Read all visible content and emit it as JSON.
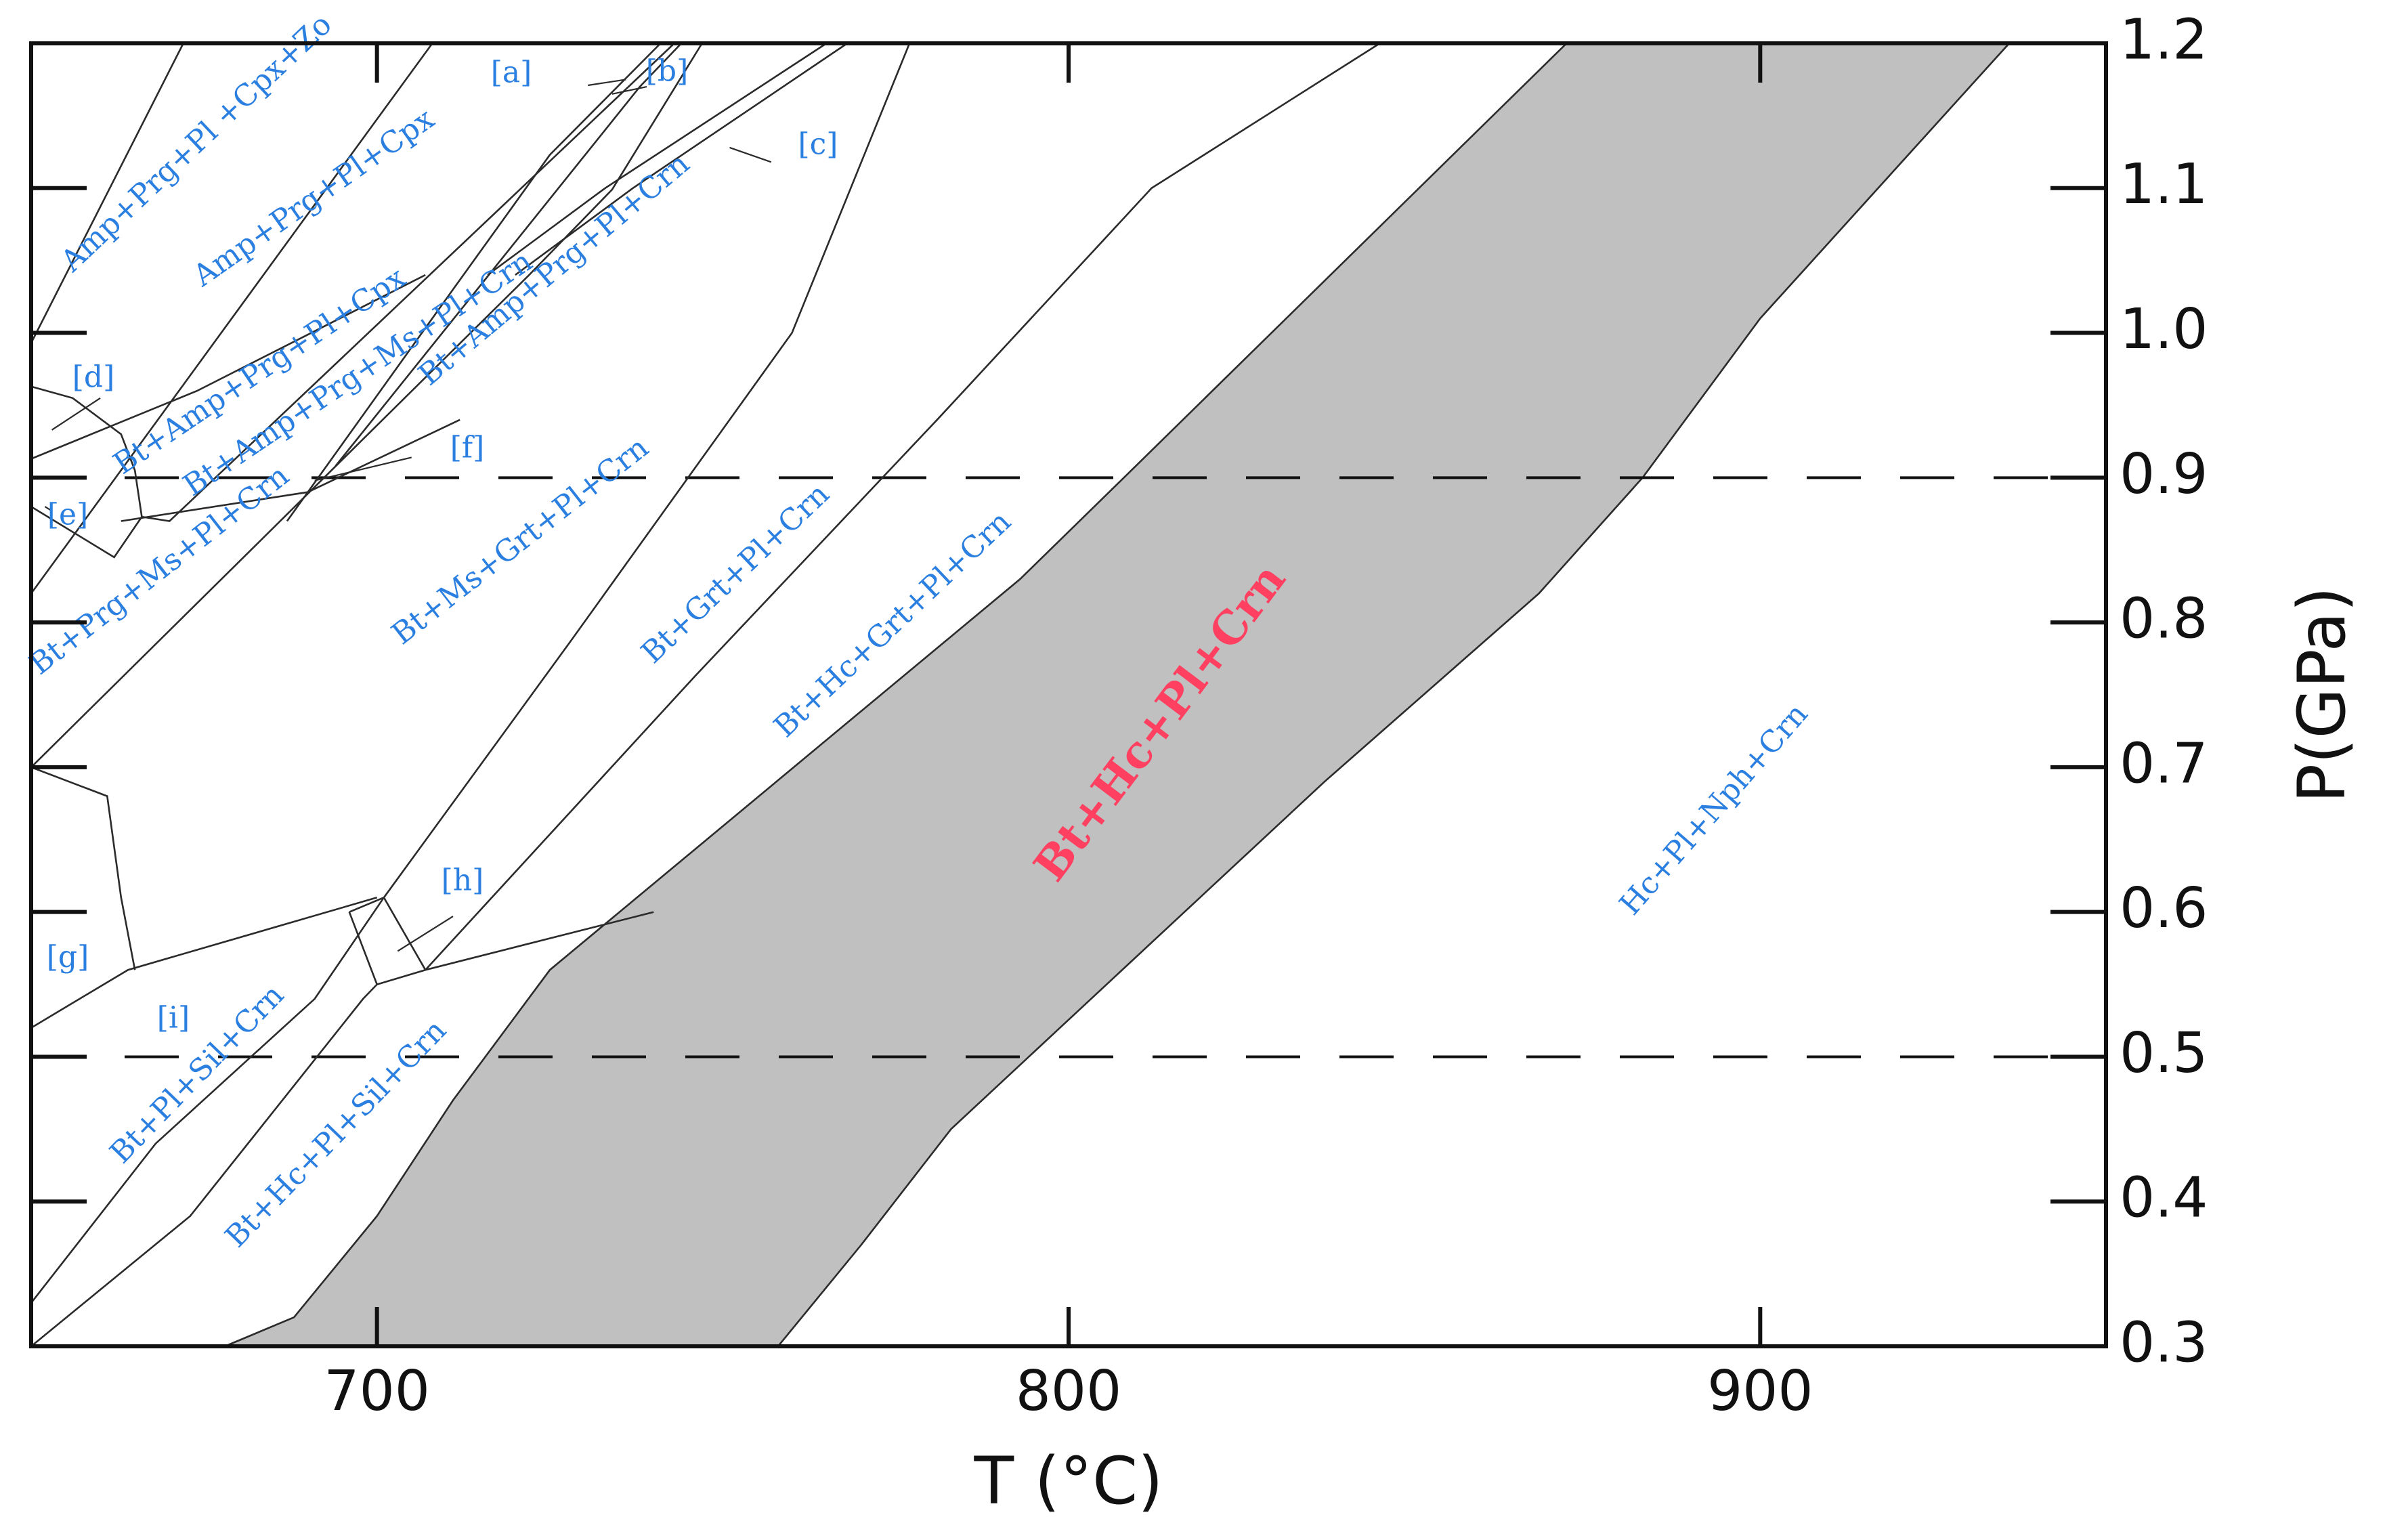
{
  "chart_data": {
    "type": "area",
    "title": "",
    "xlabel": "T (°C)",
    "ylabel": "P(GPa)",
    "xlim": [
      650,
      950
    ],
    "ylim": [
      0.3,
      1.2
    ],
    "x_ticks": [
      700,
      800,
      900
    ],
    "y_ticks": [
      "1.2",
      "1.1",
      "1.0",
      "0.9",
      "0.8",
      "0.7",
      "0.6",
      "0.5",
      "0.4",
      "0.3"
    ],
    "y_axis_side": "right",
    "dashed_reference_lines": [
      0.9,
      0.5
    ],
    "shaded_field": {
      "label": "Bt+Hc+Pl+Crn",
      "color": "#c0c0c0",
      "label_color": "#ff4060",
      "low_t_boundary": [
        [
          678,
          0.3
        ],
        [
          688,
          0.32
        ],
        [
          700,
          0.39
        ],
        [
          711,
          0.47
        ],
        [
          725,
          0.56
        ],
        [
          793,
          0.83
        ],
        [
          808,
          0.9
        ],
        [
          872,
          1.2
        ]
      ],
      "high_t_boundary": [
        [
          758,
          0.3
        ],
        [
          770,
          0.37
        ],
        [
          783,
          0.45
        ],
        [
          837,
          0.69
        ],
        [
          868,
          0.82
        ],
        [
          883,
          0.9
        ],
        [
          900,
          1.01
        ],
        [
          936,
          1.2
        ]
      ]
    },
    "boundary_color": "#2b2b2b",
    "label_color": "#2a7fe0",
    "field_labels": [
      "Amp+Prg+Pl +Cpx+Zo",
      "Amp+Prg+Pl+Cpx",
      "Bt+Amp+Prg+Pl+Cpx",
      "Bt+Amp+Prg+Ms+Pl+Crn",
      "Bt+Amp+Prg+Pl+Crn",
      "Bt+Prg+Ms+Pl+Crn",
      "Bt+Ms+Grt+Pl+Crn",
      "Bt+Grt+Pl+Crn",
      "Bt+Hc+Grt+Pl+Crn",
      "Hc+Pl+Nph+Crn",
      "Bt+Pl+Sil+Crn",
      "Bt+Hc+Pl+Sil+Crn"
    ],
    "small_field_labels": [
      "[a]",
      "[b]",
      "[c]",
      "[d]",
      "[e]",
      "[f]",
      "[g]",
      "[h]",
      "[i]"
    ]
  }
}
